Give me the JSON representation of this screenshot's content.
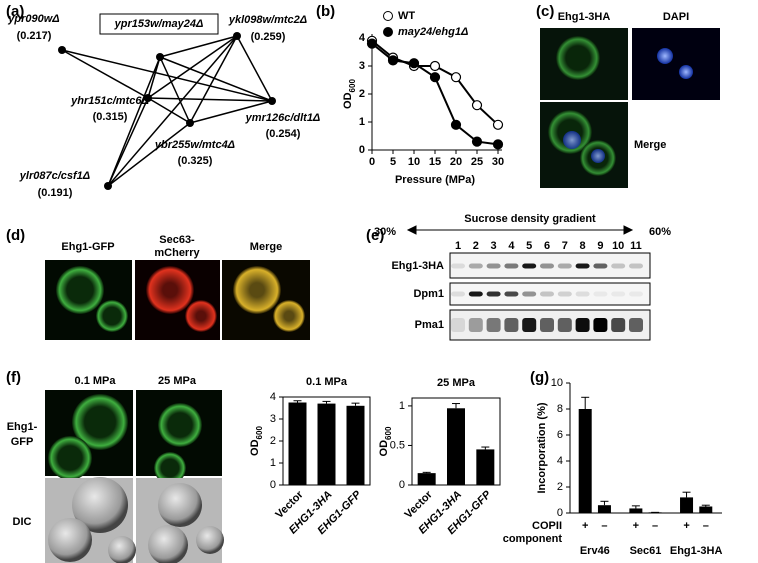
{
  "panels": {
    "a": {
      "label": "(a)",
      "box": "ypr153w/may24Δ",
      "nodes": [
        {
          "name": "ypr090wΔ",
          "score": "(0.217)"
        },
        {
          "name": "ykl098w/mtc2Δ",
          "score": "(0.259)"
        },
        {
          "name": "yhr151c/mtc6Δ",
          "score": "(0.315)"
        },
        {
          "name": "ymr126c/dlt1Δ",
          "score": "(0.254)"
        },
        {
          "name": "ybr255w/mtc4Δ",
          "score": "(0.325)"
        },
        {
          "name": "ylr087c/csf1Δ",
          "score": "(0.191)"
        }
      ]
    },
    "c": {
      "label": "(c)",
      "channels": [
        "Ehg1-3HA",
        "DAPI"
      ],
      "merge": "Merge"
    },
    "d": {
      "label": "(d)",
      "columns": [
        [
          "Ehg1-GFP"
        ],
        [
          "Sec63-",
          "mCherry"
        ],
        [
          "Merge"
        ]
      ]
    },
    "e": {
      "label": "(e)",
      "low": "30%",
      "gradient": "Sucrose density gradient",
      "high": "60%",
      "lanes": [
        "1",
        "2",
        "3",
        "4",
        "5",
        "6",
        "7",
        "8",
        "9",
        "10",
        "11"
      ],
      "rows": [
        "Ehg1-3HA",
        "Dpm1",
        "Pma1"
      ]
    },
    "f": {
      "label": "(f)",
      "conditions": [
        "0.1 MPa",
        "25 MPa"
      ],
      "rows": [
        [
          "Ehg1-",
          "GFP"
        ],
        [
          "DIC"
        ]
      ]
    },
    "g": {
      "label": "(g)"
    }
  },
  "chart_data": [
    {
      "type": "line",
      "panel": "(b)",
      "xlabel": "Pressure (MPa)",
      "ylabel": "OD",
      "ylabel_sub": "600",
      "x": [
        0,
        5,
        10,
        15,
        20,
        25,
        30
      ],
      "xlim": [
        0,
        30
      ],
      "xticks": [
        0,
        5,
        10,
        15,
        20,
        25,
        30
      ],
      "ylim": [
        0,
        4
      ],
      "yticks": [
        0,
        1,
        2,
        3,
        4
      ],
      "legend": "top-right",
      "series": [
        {
          "name": "WT",
          "color": "#000000",
          "marker": "open",
          "values": [
            3.9,
            3.3,
            3.0,
            3.0,
            2.6,
            1.6,
            0.9
          ]
        },
        {
          "name": "may24/ehg1Δ",
          "color": "#000000",
          "marker": "filled",
          "values": [
            3.8,
            3.2,
            3.1,
            2.6,
            0.9,
            0.3,
            0.2
          ]
        }
      ]
    },
    {
      "type": "bar",
      "title": "0.1 MPa",
      "ylabel": "OD",
      "ylabel_sub": "600",
      "categories": [
        "Vector",
        "EHG1-3HA",
        "EHG1-GFP"
      ],
      "values": [
        3.75,
        3.7,
        3.6
      ],
      "errors": [
        0.08,
        0.1,
        0.12
      ],
      "color": "#000000",
      "ylim": [
        0,
        4
      ],
      "yticks": [
        0,
        1,
        2,
        3,
        4
      ]
    },
    {
      "type": "bar",
      "title": "25 MPa",
      "ylabel": "OD",
      "ylabel_sub": "600",
      "categories": [
        "Vector",
        "EHG1-3HA",
        "EHG1-GFP"
      ],
      "values": [
        0.15,
        0.97,
        0.45
      ],
      "errors": [
        0.01,
        0.06,
        0.03
      ],
      "color": "#000000",
      "ylim": [
        0,
        1.1
      ],
      "yticks": [
        0,
        0.5,
        1
      ]
    },
    {
      "type": "bar",
      "ylabel": "Incorporation (%)",
      "categories": [
        "+",
        "–",
        "+",
        "–",
        "+",
        "–"
      ],
      "category_title": [
        "COPII",
        "component"
      ],
      "groups": [
        "Erv46",
        "Sec61",
        "Ehg1-3HA"
      ],
      "values": [
        8.0,
        0.6,
        0.35,
        0.05,
        1.2,
        0.5
      ],
      "errors": [
        0.9,
        0.3,
        0.2,
        0.0,
        0.4,
        0.1
      ],
      "color": "#000000",
      "ylim": [
        0,
        10
      ],
      "yticks": [
        0,
        2,
        4,
        6,
        8,
        10
      ]
    }
  ]
}
